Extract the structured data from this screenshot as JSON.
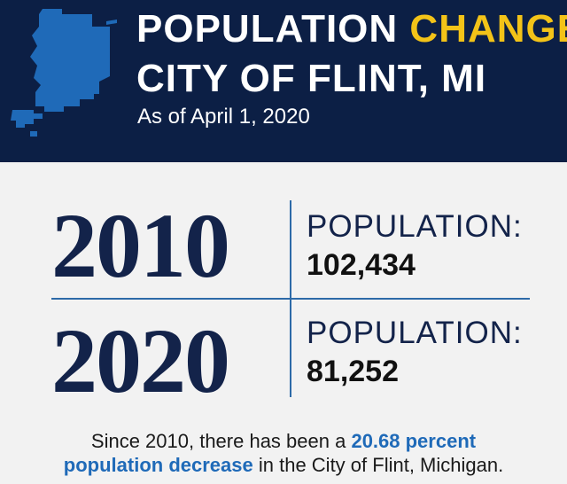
{
  "header": {
    "title_part1": "POPULATION ",
    "title_accent": "CHANGE",
    "title_line2": "CITY OF FLINT, MI",
    "date": "As of April 1, 2020"
  },
  "stats": [
    {
      "year": "2010",
      "label": "POPULATION:",
      "value": "102,434"
    },
    {
      "year": "2020",
      "label": "POPULATION:",
      "value": "81,252"
    }
  ],
  "summary": {
    "prefix": "Since 2010, there has been a ",
    "highlight_line1": "20.68 percent",
    "highlight_line2": "population decrease",
    "suffix": " in the City of Flint, Michigan."
  },
  "colors": {
    "header_bg": "#0c1f45",
    "accent_yellow": "#f3c318",
    "map_blue": "#1f6ab8",
    "navy_text": "#13234a",
    "divider_blue": "#2d6aa8",
    "highlight_blue": "#1f6ab8"
  }
}
